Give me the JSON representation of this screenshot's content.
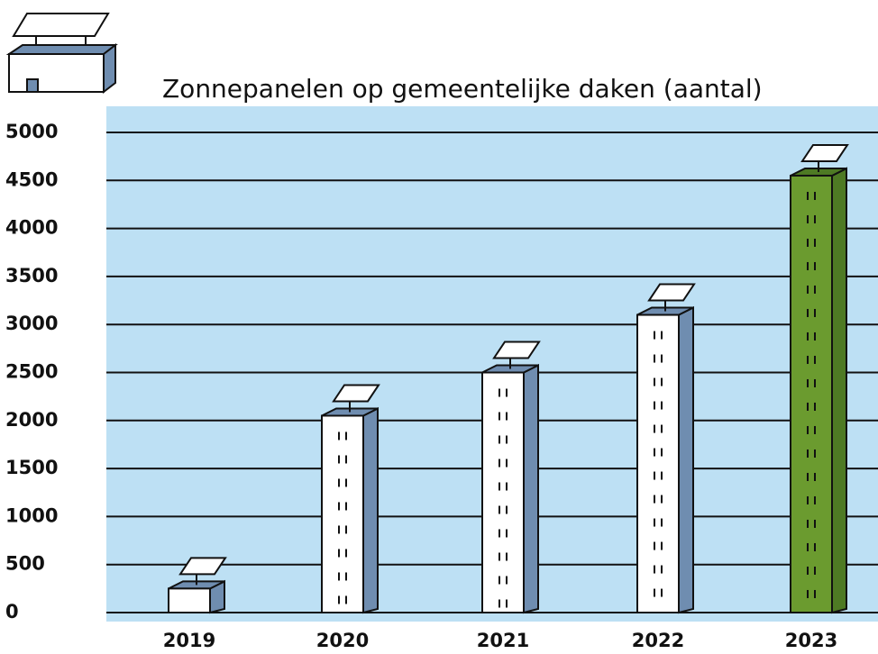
{
  "chart_data": {
    "type": "bar",
    "title": "Zonnepanelen op gemeentelijke daken (aantal)",
    "categories": [
      "2019",
      "2020",
      "2021",
      "2022",
      "2023"
    ],
    "values": [
      250,
      2050,
      2500,
      3100,
      4550
    ],
    "colors": [
      "#ffffff",
      "#ffffff",
      "#ffffff",
      "#ffffff",
      "#6b9b2f"
    ],
    "side_colors": [
      "#6f8db0",
      "#6f8db0",
      "#6f8db0",
      "#6f8db0",
      "#4e7a24"
    ],
    "ylim": [
      0,
      5000
    ],
    "yticks": [
      0,
      500,
      1000,
      1500,
      2000,
      2500,
      3000,
      3500,
      4000,
      4500,
      5000
    ],
    "grid": true
  }
}
